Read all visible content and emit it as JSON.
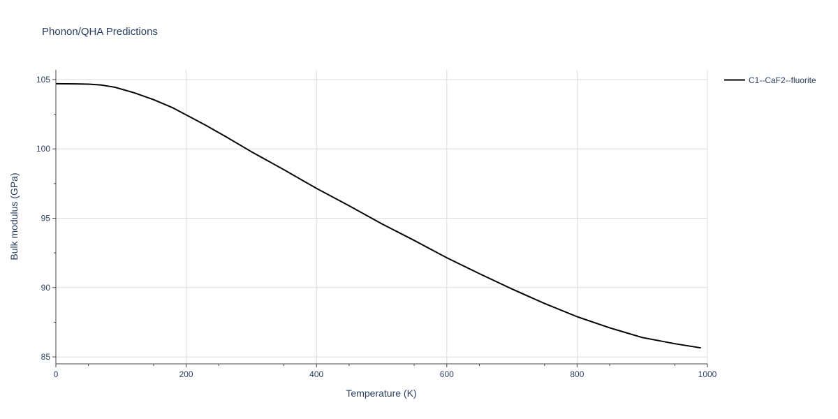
{
  "chart_data": {
    "type": "line",
    "title": "Phonon/QHA Predictions",
    "xlabel": "Temperature (K)",
    "ylabel": "Bulk modulus (GPa)",
    "xlim": [
      0,
      1000
    ],
    "ylim": [
      84.5,
      105.7
    ],
    "x_ticks": [
      0,
      200,
      400,
      600,
      800,
      1000
    ],
    "y_ticks": [
      85,
      90,
      95,
      100,
      105
    ],
    "x_tick_labels": [
      "0",
      "200",
      "400",
      "600",
      "800",
      "1000"
    ],
    "y_tick_labels": [
      "85",
      "90",
      "95",
      "100",
      "105"
    ],
    "grid": true,
    "legend_position": "top-right",
    "series": [
      {
        "name": "C1--CaF2--fluorite",
        "color": "#000000",
        "x": [
          0,
          30,
          50,
          70,
          90,
          120,
          150,
          180,
          200,
          230,
          260,
          300,
          350,
          400,
          450,
          500,
          550,
          600,
          650,
          700,
          750,
          800,
          850,
          900,
          950,
          990
        ],
        "y": [
          104.7,
          104.69,
          104.67,
          104.6,
          104.45,
          104.05,
          103.55,
          102.95,
          102.45,
          101.7,
          100.9,
          99.8,
          98.5,
          97.15,
          95.9,
          94.6,
          93.4,
          92.15,
          91.0,
          89.9,
          88.85,
          87.9,
          87.1,
          86.4,
          85.95,
          85.65
        ]
      }
    ]
  }
}
